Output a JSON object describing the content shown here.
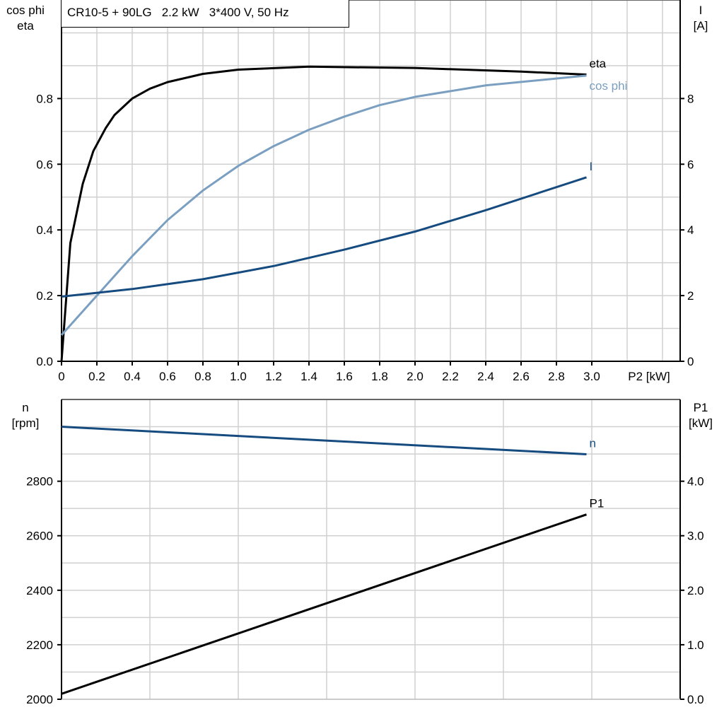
{
  "chart_data": [
    {
      "type": "line",
      "title": "CR10-5 + 90LG   2.2 kW   3*400 V, 50 Hz",
      "xlabel": "P2 [kW]",
      "ylabel_left": [
        "cos phi",
        "eta"
      ],
      "ylabel_right": [
        "I",
        "[A]"
      ],
      "xlim": [
        0,
        3.5
      ],
      "ylim_left": [
        0,
        1.1
      ],
      "ylim_right": [
        0,
        11
      ],
      "x_ticks": [
        "0",
        "0.2",
        "0.4",
        "0.6",
        "0.8",
        "1.0",
        "1.2",
        "1.4",
        "1.6",
        "1.8",
        "2.0",
        "2.2",
        "2.4",
        "2.6",
        "2.8",
        "3.0"
      ],
      "y_ticks_left": [
        "0.0",
        "0.2",
        "0.4",
        "0.6",
        "0.8"
      ],
      "y_ticks_right": [
        "0",
        "2",
        "4",
        "6",
        "8"
      ],
      "grid": true,
      "series": [
        {
          "name": "eta",
          "axis": "left",
          "color": "#000000",
          "x": [
            0,
            0.05,
            0.12,
            0.18,
            0.25,
            0.3,
            0.4,
            0.5,
            0.6,
            0.8,
            1.0,
            1.4,
            2.0,
            2.6,
            2.97
          ],
          "y": [
            0,
            0.36,
            0.54,
            0.64,
            0.71,
            0.75,
            0.8,
            0.83,
            0.85,
            0.875,
            0.888,
            0.897,
            0.893,
            0.882,
            0.873
          ]
        },
        {
          "name": "cos phi",
          "axis": "left",
          "color": "#7a9fc0",
          "x": [
            0,
            0.2,
            0.4,
            0.6,
            0.8,
            1.0,
            1.2,
            1.4,
            1.6,
            1.8,
            2.0,
            2.4,
            2.97
          ],
          "y": [
            0.08,
            0.2,
            0.32,
            0.43,
            0.52,
            0.595,
            0.655,
            0.705,
            0.745,
            0.78,
            0.805,
            0.84,
            0.87
          ]
        },
        {
          "name": "I",
          "axis": "right",
          "color": "#164b80",
          "x": [
            0,
            0.4,
            0.8,
            1.2,
            1.6,
            2.0,
            2.4,
            2.97
          ],
          "y": [
            1.97,
            2.2,
            2.5,
            2.9,
            3.4,
            3.95,
            4.6,
            5.6
          ]
        }
      ]
    },
    {
      "type": "line",
      "ylabel_left": [
        "n",
        "[rpm]"
      ],
      "ylabel_right": [
        "P1",
        "[kW]"
      ],
      "xlim": [
        0,
        3.5
      ],
      "ylim_left": [
        2000,
        3100
      ],
      "ylim_right": [
        0,
        5.5
      ],
      "y_ticks_left": [
        "2000",
        "2200",
        "2400",
        "2600",
        "2800"
      ],
      "y_ticks_right": [
        "0.0",
        "1.0",
        "2.0",
        "3.0",
        "4.0"
      ],
      "grid": true,
      "series": [
        {
          "name": "n",
          "axis": "left",
          "color": "#164b80",
          "x": [
            0,
            2.97
          ],
          "y": [
            3000,
            2899
          ]
        },
        {
          "name": "P1",
          "axis": "right",
          "color": "#000000",
          "x": [
            0,
            2.97
          ],
          "y": [
            0.1,
            3.39
          ]
        }
      ]
    }
  ]
}
